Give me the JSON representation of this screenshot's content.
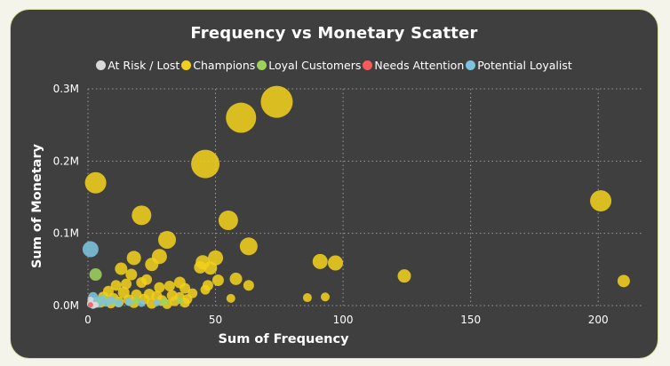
{
  "chart_data": {
    "type": "scatter",
    "title": "Frequency vs Monetary Scatter",
    "xlabel": "Sum of Frequency",
    "ylabel": "Sum of Monetary",
    "xlim": [
      0,
      217
    ],
    "ylim": [
      0,
      300000
    ],
    "x_ticks": [
      "0",
      "50",
      "100",
      "150",
      "200"
    ],
    "x_tick_values": [
      0,
      50,
      100,
      150,
      200
    ],
    "y_ticks": [
      "0.0M",
      "0.1M",
      "0.2M",
      "0.3M"
    ],
    "y_tick_values": [
      0,
      100000,
      200000,
      300000
    ],
    "grid": true,
    "legend_position": "top-center",
    "legend": [
      {
        "name": "At Risk / Lost",
        "color": "#d9d9d9"
      },
      {
        "name": "Champions",
        "color": "#f0cf1d"
      },
      {
        "name": "Loyal Customers",
        "color": "#9ed15c"
      },
      {
        "name": "Needs Attention",
        "color": "#f55b5b"
      },
      {
        "name": "Potential Loyalist",
        "color": "#7cc4dd"
      }
    ],
    "series": [
      {
        "name": "Champions",
        "color": "#f0cf1d",
        "points": [
          [
            74,
            282000,
            36
          ],
          [
            60,
            260000,
            34
          ],
          [
            46,
            196000,
            32
          ],
          [
            3,
            170000,
            24
          ],
          [
            201,
            145000,
            24
          ],
          [
            21,
            125000,
            22
          ],
          [
            55,
            118000,
            22
          ],
          [
            31,
            91000,
            20
          ],
          [
            63,
            82000,
            20
          ],
          [
            50,
            66000,
            17
          ],
          [
            28,
            68000,
            17
          ],
          [
            18,
            66000,
            16
          ],
          [
            45,
            60000,
            16
          ],
          [
            91,
            61000,
            17
          ],
          [
            97,
            59000,
            17
          ],
          [
            25,
            57000,
            15
          ],
          [
            13,
            51000,
            14
          ],
          [
            48,
            52000,
            15
          ],
          [
            44,
            53000,
            14
          ],
          [
            124,
            41000,
            15
          ],
          [
            210,
            34000,
            14
          ],
          [
            58,
            37000,
            14
          ],
          [
            51,
            35000,
            13
          ],
          [
            17,
            43000,
            13
          ],
          [
            36,
            32000,
            13
          ],
          [
            23,
            36000,
            12
          ],
          [
            15,
            30000,
            12
          ],
          [
            63,
            28000,
            12
          ],
          [
            28,
            25000,
            12
          ],
          [
            47,
            28000,
            12
          ],
          [
            11,
            28000,
            12
          ],
          [
            21,
            32000,
            12
          ],
          [
            38,
            24000,
            12
          ],
          [
            32,
            27000,
            12
          ],
          [
            8,
            20000,
            12
          ],
          [
            14,
            18000,
            13
          ],
          [
            19,
            15000,
            12
          ],
          [
            24,
            16000,
            12
          ],
          [
            27,
            13000,
            12
          ],
          [
            33,
            14000,
            12
          ],
          [
            36,
            12000,
            11
          ],
          [
            41,
            17000,
            11
          ],
          [
            6,
            12000,
            12
          ],
          [
            10,
            10000,
            12
          ],
          [
            16,
            8000,
            12
          ],
          [
            22,
            9000,
            12
          ],
          [
            29,
            7000,
            12
          ],
          [
            34,
            6000,
            11
          ],
          [
            12,
            5000,
            12
          ],
          [
            18,
            4000,
            12
          ],
          [
            25,
            3000,
            12
          ],
          [
            31,
            2000,
            11
          ],
          [
            38,
            4000,
            11
          ],
          [
            5,
            4000,
            11
          ],
          [
            9,
            3000,
            11
          ],
          [
            46,
            22000,
            11
          ],
          [
            39,
            9000,
            11
          ],
          [
            56,
            10000,
            10
          ],
          [
            86,
            11000,
            10
          ],
          [
            93,
            12000,
            10
          ]
        ]
      },
      {
        "name": "Loyal Customers",
        "color": "#9ed15c",
        "points": [
          [
            3,
            43000,
            14
          ],
          [
            6,
            9000,
            10
          ],
          [
            11,
            6000,
            9
          ],
          [
            19,
            7000,
            9
          ],
          [
            30,
            5000,
            9
          ],
          [
            36,
            7000,
            8
          ],
          [
            4,
            3000,
            8
          ]
        ]
      },
      {
        "name": "Potential Loyalist",
        "color": "#7cc4dd",
        "points": [
          [
            1,
            78000,
            18
          ],
          [
            2,
            12000,
            11
          ],
          [
            3,
            6000,
            10
          ],
          [
            5,
            8000,
            10
          ],
          [
            7,
            4000,
            9
          ],
          [
            9,
            7000,
            9
          ],
          [
            12,
            3000,
            9
          ],
          [
            16,
            5000,
            9
          ],
          [
            21,
            3000,
            8
          ],
          [
            27,
            4000,
            8
          ],
          [
            1,
            3000,
            8
          ],
          [
            2,
            1000,
            9
          ],
          [
            4,
            2000,
            8
          ]
        ]
      },
      {
        "name": "At Risk / Lost",
        "color": "#d9d9d9",
        "points": [
          [
            1,
            2000,
            8
          ],
          [
            2,
            500,
            8
          ],
          [
            3,
            1000,
            7
          ],
          [
            1,
            8000,
            7
          ]
        ]
      },
      {
        "name": "Needs Attention",
        "color": "#f55b5b",
        "points": [
          [
            1,
            1000,
            6
          ]
        ]
      }
    ]
  }
}
